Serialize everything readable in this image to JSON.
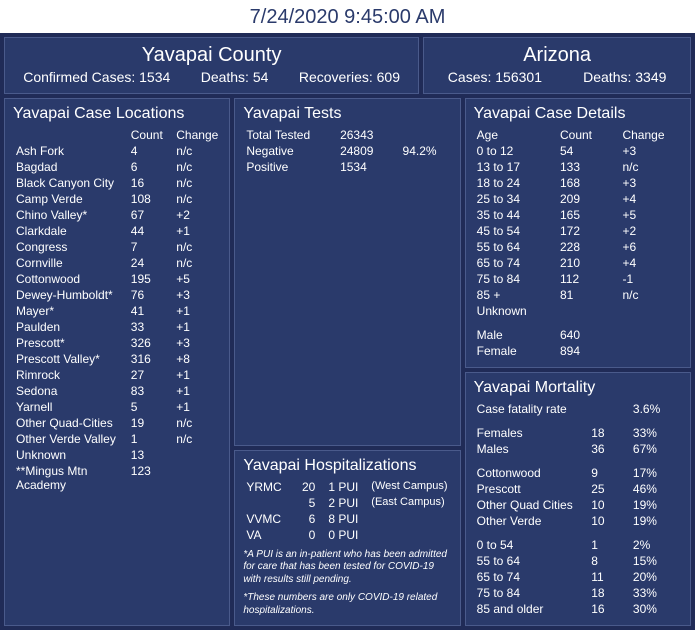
{
  "timestamp": "7/24/2020 9:45:00 AM",
  "county_header": {
    "title": "Yavapai County",
    "confirmed_label": "Confirmed Cases:",
    "confirmed_value": "1534",
    "deaths_label": "Deaths:",
    "deaths_value": "54",
    "recoveries_label": "Recoveries:",
    "recoveries_value": "609"
  },
  "state_header": {
    "title": "Arizona",
    "cases_label": "Cases:",
    "cases_value": "156301",
    "deaths_label": "Deaths:",
    "deaths_value": "3349"
  },
  "locations": {
    "title": "Yavapai Case Locations",
    "count_header": "Count",
    "change_header": "Change",
    "rows": [
      {
        "name": "Ash Fork",
        "count": "4",
        "change": "n/c"
      },
      {
        "name": "Bagdad",
        "count": "6",
        "change": "n/c"
      },
      {
        "name": "Black Canyon City",
        "count": "16",
        "change": "n/c"
      },
      {
        "name": "Camp Verde",
        "count": "108",
        "change": "n/c"
      },
      {
        "name": "Chino Valley*",
        "count": "67",
        "change": "+2"
      },
      {
        "name": "Clarkdale",
        "count": "44",
        "change": "+1"
      },
      {
        "name": "Congress",
        "count": "7",
        "change": "n/c"
      },
      {
        "name": "Cornville",
        "count": "24",
        "change": "n/c"
      },
      {
        "name": "Cottonwood",
        "count": "195",
        "change": "+5"
      },
      {
        "name": "Dewey-Humboldt*",
        "count": "76",
        "change": "+3"
      },
      {
        "name": "Mayer*",
        "count": "41",
        "change": "+1"
      },
      {
        "name": "Paulden",
        "count": "33",
        "change": "+1"
      },
      {
        "name": "Prescott*",
        "count": "326",
        "change": "+3"
      },
      {
        "name": "Prescott Valley*",
        "count": "316",
        "change": "+8"
      },
      {
        "name": "Rimrock",
        "count": "27",
        "change": "+1"
      },
      {
        "name": "Sedona",
        "count": "83",
        "change": "+1"
      },
      {
        "name": "Yarnell",
        "count": "5",
        "change": "+1"
      },
      {
        "name": "Other Quad-Cities",
        "count": "19",
        "change": "n/c"
      },
      {
        "name": "Other Verde Valley",
        "count": "1",
        "change": "n/c"
      },
      {
        "name": "Unknown",
        "count": "13",
        "change": ""
      },
      {
        "name": "**Mingus Mtn Academy",
        "count": "123",
        "change": ""
      }
    ]
  },
  "tests": {
    "title": "Yavapai Tests",
    "rows": [
      {
        "label": "Total Tested",
        "value": "26343",
        "pct": ""
      },
      {
        "label": "Negative",
        "value": "24809",
        "pct": "94.2%"
      },
      {
        "label": "Positive",
        "value": "1534",
        "pct": ""
      }
    ]
  },
  "hospitalizations": {
    "title": "Yavapai Hospitalizations",
    "rows": [
      {
        "c1": "YRMC",
        "c2": "20",
        "c3": "1 PUI",
        "c4": "(West Campus)"
      },
      {
        "c1": "",
        "c2": "5",
        "c3": "2 PUI",
        "c4": "(East Campus)"
      },
      {
        "c1": "VVMC",
        "c2": "6",
        "c3": "8 PUI",
        "c4": ""
      },
      {
        "c1": "VA",
        "c2": "0",
        "c3": "0 PUI",
        "c4": ""
      }
    ],
    "note1": "*A PUI is an in-patient who has been admitted for care that has been tested for COVID-19 with results still pending.",
    "note2": "*These numbers are only COVID-19 related hospitalizations."
  },
  "details": {
    "title": "Yavapai Case Details",
    "age_header": "Age",
    "count_header": "Count",
    "change_header": "Change",
    "age_rows": [
      {
        "age": "0 to 12",
        "count": "54",
        "change": "+3"
      },
      {
        "age": "13 to 17",
        "count": "133",
        "change": "n/c"
      },
      {
        "age": "18 to 24",
        "count": "168",
        "change": "+3"
      },
      {
        "age": "25 to 34",
        "count": "209",
        "change": "+4"
      },
      {
        "age": "35 to 44",
        "count": "165",
        "change": "+5"
      },
      {
        "age": "45 to 54",
        "count": "172",
        "change": "+2"
      },
      {
        "age": "55 to 64",
        "count": "228",
        "change": "+6"
      },
      {
        "age": "65 to 74",
        "count": "210",
        "change": "+4"
      },
      {
        "age": "75 to 84",
        "count": "112",
        "change": "-1"
      },
      {
        "age": "85 +",
        "count": "81",
        "change": "n/c"
      },
      {
        "age": "Unknown",
        "count": "",
        "change": ""
      }
    ],
    "gender_rows": [
      {
        "label": "Male",
        "value": "640"
      },
      {
        "label": "Female",
        "value": "894"
      }
    ]
  },
  "mortality": {
    "title": "Yavapai Mortality",
    "cfr_label": "Case fatality rate",
    "cfr_value": "3.6%",
    "gender_rows": [
      {
        "label": "Females",
        "count": "18",
        "pct": "33%"
      },
      {
        "label": "Males",
        "count": "36",
        "pct": "67%"
      }
    ],
    "city_rows": [
      {
        "label": "Cottonwood",
        "count": "9",
        "pct": "17%"
      },
      {
        "label": "Prescott",
        "count": "25",
        "pct": "46%"
      },
      {
        "label": "Other Quad Cities",
        "count": "10",
        "pct": "19%"
      },
      {
        "label": "Other Verde",
        "count": "10",
        "pct": "19%"
      }
    ],
    "age_rows": [
      {
        "label": "0 to 54",
        "count": "1",
        "pct": "2%"
      },
      {
        "label": "55 to 64",
        "count": "8",
        "pct": "15%"
      },
      {
        "label": "65 to 74",
        "count": "11",
        "pct": "20%"
      },
      {
        "label": "75 to 84",
        "count": "18",
        "pct": "33%"
      },
      {
        "label": "85 and older",
        "count": "16",
        "pct": "30%"
      }
    ]
  },
  "colors": {
    "page_bg": "#ffffff",
    "dash_bg": "#202b57",
    "card_bg": "#2a3a6b",
    "card_border": "#4a5a8b",
    "text": "#ffffff",
    "timestamp_color": "#2a3a6b"
  }
}
